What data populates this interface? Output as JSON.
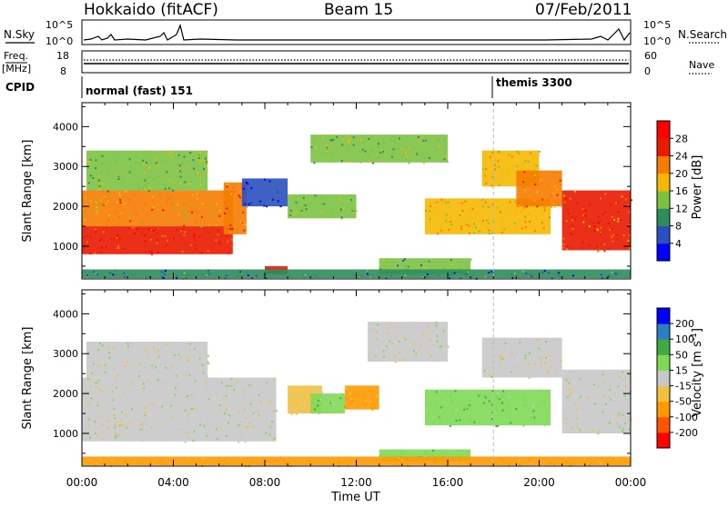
{
  "header": {
    "station": "Hokkaido (fitACF)",
    "beam": "Beam 15",
    "date": "07/Feb/2011"
  },
  "status_panels": {
    "nsky_label": "N.Sky",
    "nsky_ticks": [
      "10^5",
      "10^0"
    ],
    "nsearch_label": "N.Search",
    "freq_label": "Freq.",
    "freq_unit": "[MHz]",
    "freq_ticks": [
      "18",
      "8"
    ],
    "nave_label": "Nave",
    "nave_ticks": [
      "60",
      "0"
    ],
    "cpid_label": "CPID",
    "cpid_modes": [
      {
        "name": "normal (fast) 151",
        "start_hour": 0
      },
      {
        "name": "themis 3300",
        "start_hour": 18
      }
    ]
  },
  "chart_data": [
    {
      "type": "heatmap",
      "title": "",
      "xlabel": "Time UT",
      "ylabel": "Slant Range [km]",
      "xlim": [
        0,
        24
      ],
      "ylim": [
        180,
        4600
      ],
      "yticks": [
        1000,
        2000,
        3000,
        4000
      ],
      "colorbar": {
        "label": "Power [dB]",
        "ticks": [
          4,
          8,
          12,
          16,
          20,
          24,
          28
        ],
        "colors": [
          "#0000ff",
          "#2a4fbe",
          "#2e8c5a",
          "#7cc242",
          "#f5b800",
          "#f57c00",
          "#e81a00",
          "#ff0000"
        ]
      },
      "regions": [
        {
          "t0": 0.0,
          "t1": 6.6,
          "r0": 800,
          "r1": 1500,
          "value": 26
        },
        {
          "t0": 0.0,
          "t1": 6.6,
          "r0": 1500,
          "r1": 2400,
          "value": 20
        },
        {
          "t0": 0.2,
          "t1": 5.5,
          "r0": 2400,
          "r1": 3400,
          "value": 14
        },
        {
          "t0": 6.2,
          "t1": 7.2,
          "r0": 1300,
          "r1": 2600,
          "value": 22
        },
        {
          "t0": 7.0,
          "t1": 9.0,
          "r0": 2000,
          "r1": 2700,
          "value": 6
        },
        {
          "t0": 8.0,
          "t1": 9.0,
          "r0": 300,
          "r1": 500,
          "value": 24
        },
        {
          "t0": 9.0,
          "t1": 12.0,
          "r0": 1700,
          "r1": 2300,
          "value": 14
        },
        {
          "t0": 10.0,
          "t1": 16.0,
          "r0": 3100,
          "r1": 3800,
          "value": 14
        },
        {
          "t0": 13.0,
          "t1": 17.0,
          "r0": 300,
          "r1": 700,
          "value": 12
        },
        {
          "t0": 15.0,
          "t1": 20.5,
          "r0": 1300,
          "r1": 2200,
          "value": 18
        },
        {
          "t0": 17.5,
          "t1": 20.0,
          "r0": 2500,
          "r1": 3400,
          "value": 18
        },
        {
          "t0": 19.0,
          "t1": 21.0,
          "r0": 2000,
          "r1": 2900,
          "value": 22
        },
        {
          "t0": 21.0,
          "t1": 24.0,
          "r0": 900,
          "r1": 2400,
          "value": 24
        },
        {
          "t0": 0.0,
          "t1": 24.0,
          "r0": 200,
          "r1": 420,
          "value": 8
        }
      ]
    },
    {
      "type": "heatmap",
      "title": "",
      "xlabel": "Time UT",
      "ylabel": "Slant Range [km]",
      "xlim": [
        0,
        24
      ],
      "ylim": [
        180,
        4600
      ],
      "yticks": [
        1000,
        2000,
        3000,
        4000
      ],
      "colorbar": {
        "label": "Velocity [m s^-1]",
        "ticks": [
          -200,
          -100,
          -50,
          -15,
          15,
          50,
          100,
          200
        ],
        "colors": [
          "#ff0000",
          "#ff5500",
          "#ff9900",
          "#f0c040",
          "#c8c8c8",
          "#7ed957",
          "#3faa3f",
          "#2a7fbf",
          "#0000ff"
        ]
      },
      "regions": [
        {
          "t0": 0.0,
          "t1": 8.5,
          "r0": 800,
          "r1": 2400,
          "value": 0
        },
        {
          "t0": 0.2,
          "t1": 5.5,
          "r0": 2400,
          "r1": 3300,
          "value": 0
        },
        {
          "t0": 9.0,
          "t1": 10.5,
          "r0": 1500,
          "r1": 2200,
          "value": -20
        },
        {
          "t0": 10.0,
          "t1": 11.5,
          "r0": 1500,
          "r1": 2000,
          "value": 40
        },
        {
          "t0": 11.5,
          "t1": 13.0,
          "r0": 1600,
          "r1": 2200,
          "value": -60
        },
        {
          "t0": 12.5,
          "t1": 16.0,
          "r0": 2800,
          "r1": 3800,
          "value": 0
        },
        {
          "t0": 13.0,
          "t1": 17.0,
          "r0": 300,
          "r1": 600,
          "value": 40
        },
        {
          "t0": 15.0,
          "t1": 20.5,
          "r0": 1200,
          "r1": 2100,
          "value": 40
        },
        {
          "t0": 17.5,
          "t1": 21.0,
          "r0": 2400,
          "r1": 3400,
          "value": 0
        },
        {
          "t0": 21.0,
          "t1": 24.0,
          "r0": 1000,
          "r1": 2600,
          "value": 0
        },
        {
          "t0": 0.0,
          "t1": 24.0,
          "r0": 200,
          "r1": 420,
          "value": -60
        }
      ]
    }
  ],
  "x_axis": {
    "ticks": [
      "00:00",
      "04:00",
      "08:00",
      "12:00",
      "16:00",
      "20:00",
      "00:00"
    ],
    "label": "Time UT"
  }
}
